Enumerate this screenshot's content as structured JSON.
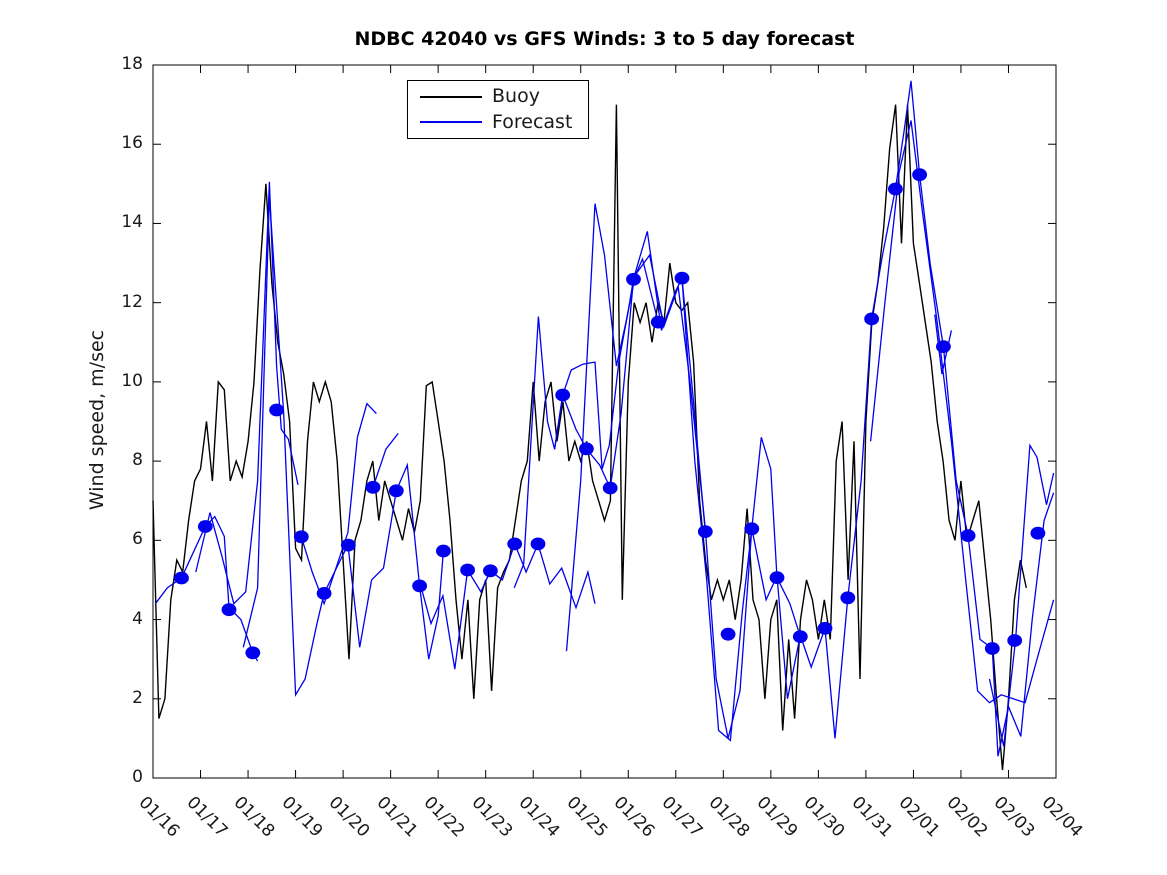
{
  "title": "NDBC 42040 vs GFS Winds: 3 to 5 day forecast",
  "legend": {
    "items": [
      {
        "label": "Buoy",
        "color": "#000000"
      },
      {
        "label": "Forecast",
        "color": "#0000ee"
      }
    ]
  },
  "colors": {
    "buoy": "#000000",
    "forecast": "#0000ee",
    "marker": "#0000ee",
    "axis": "#000000",
    "background": "#ffffff"
  },
  "chart_data": {
    "type": "line",
    "title": "NDBC 42040 vs GFS Winds: 3 to 5 day forecast",
    "xlabel": "",
    "ylabel": "Wind speed, m/sec",
    "ylim": [
      0,
      18
    ],
    "xlim_days": [
      0,
      19
    ],
    "grid": false,
    "legend_position": "top-left-inside",
    "yticks": [
      0,
      2,
      4,
      6,
      8,
      10,
      12,
      14,
      16,
      18
    ],
    "xtick_labels": [
      "01/16",
      "01/17",
      "01/18",
      "01/19",
      "01/20",
      "01/21",
      "01/22",
      "01/23",
      "01/24",
      "01/25",
      "01/26",
      "01/27",
      "01/28",
      "01/29",
      "01/30",
      "01/31",
      "02/01",
      "02/02",
      "02/03",
      "02/04"
    ],
    "x_unit": "days since 01/16 00:00",
    "buoy_series": {
      "name": "Buoy",
      "t_start": 0,
      "t_step": 0.125,
      "values": [
        7,
        1.5,
        2,
        4.5,
        5.5,
        5.2,
        6.5,
        7.5,
        7.8,
        9,
        7.5,
        10,
        9.8,
        7.5,
        8,
        7.6,
        8.5,
        10,
        12.8,
        15,
        12.5,
        11,
        10.2,
        9,
        5.8,
        5.5,
        8.5,
        10,
        9.5,
        10,
        9.5,
        8,
        5.5,
        3,
        6,
        6.5,
        7.5,
        8,
        6.5,
        7.5,
        7,
        6.5,
        6,
        6.8,
        6.2,
        7,
        9.9,
        10,
        9,
        8,
        6.5,
        4.5,
        3,
        4.5,
        2,
        4.5,
        5,
        2.2,
        4.8,
        5.2,
        5.5,
        6.5,
        7.5,
        8,
        10,
        8,
        9.5,
        10,
        8.5,
        9.5,
        8,
        8.5,
        8,
        8.5,
        7.5,
        7,
        6.5,
        7,
        17,
        4.5,
        10,
        12,
        11.5,
        12,
        11,
        12,
        11.5,
        13,
        12,
        11.8,
        12,
        10.5,
        7,
        5.5,
        4.5,
        5,
        4.5,
        5,
        4,
        5,
        6.8,
        4.5,
        4,
        2,
        4,
        4.5,
        1.2,
        3.5,
        1.5,
        4,
        5,
        4.5,
        3.5,
        4.5,
        3.5,
        8,
        9,
        5,
        8.5,
        2.5,
        9,
        11.5,
        12.5,
        13.9,
        15.9,
        17,
        13.5,
        17,
        13.5,
        12.5,
        11.5,
        10.5,
        9,
        8,
        6.5,
        6,
        7.5,
        6,
        6.5,
        7,
        5.5,
        4,
        2,
        0.2,
        2,
        4.5,
        5.5,
        4.8
      ]
    },
    "forecast_segments": [
      [
        [
          0.05,
          4.4
        ],
        [
          0.3,
          4.8
        ],
        [
          0.6,
          5.05
        ],
        [
          0.85,
          5.7
        ],
        [
          1.1,
          6.35
        ],
        [
          1.3,
          6.6
        ],
        [
          1.5,
          6.1
        ],
        [
          1.6,
          4.3
        ],
        [
          1.85,
          4.0
        ],
        [
          2.1,
          3.16
        ],
        [
          2.2,
          2.95
        ]
      ],
      [
        [
          0.9,
          5.2
        ],
        [
          1.2,
          6.7
        ],
        [
          1.45,
          5.6
        ],
        [
          1.7,
          4.4
        ],
        [
          1.95,
          4.7
        ],
        [
          2.2,
          7.5
        ],
        [
          2.45,
          15.05
        ],
        [
          2.6,
          10.4
        ],
        [
          2.7,
          8.8
        ],
        [
          2.85,
          8.55
        ],
        [
          3.05,
          7.4
        ]
      ],
      [
        [
          1.9,
          3.3
        ],
        [
          2.2,
          4.8
        ],
        [
          2.45,
          14.7
        ],
        [
          2.75,
          9.2
        ],
        [
          3.0,
          2.1
        ],
        [
          3.2,
          2.5
        ],
        [
          3.45,
          3.9
        ],
        [
          3.6,
          4.66
        ],
        [
          3.9,
          5.4
        ],
        [
          4.1,
          5.88
        ]
      ],
      [
        [
          3.12,
          6.09
        ],
        [
          3.35,
          5.2
        ],
        [
          3.6,
          4.4
        ],
        [
          3.85,
          5.3
        ],
        [
          4.1,
          6.2
        ],
        [
          4.3,
          8.6
        ],
        [
          4.5,
          9.45
        ],
        [
          4.7,
          9.2
        ]
      ],
      [
        [
          4.1,
          5.9
        ],
        [
          4.35,
          3.3
        ],
        [
          4.6,
          5.0
        ],
        [
          4.85,
          5.3
        ],
        [
          5.12,
          7.25
        ],
        [
          5.35,
          7.9
        ],
        [
          5.61,
          4.85
        ],
        [
          5.8,
          3.0
        ],
        [
          6.0,
          4.1
        ],
        [
          6.11,
          5.73
        ]
      ],
      [
        [
          4.63,
          7.34
        ],
        [
          4.9,
          8.3
        ],
        [
          5.16,
          8.7
        ]
      ],
      [
        [
          5.6,
          5.0
        ],
        [
          5.85,
          3.9
        ],
        [
          6.1,
          4.6
        ],
        [
          6.35,
          2.75
        ],
        [
          6.62,
          5.25
        ],
        [
          6.9,
          4.7
        ],
        [
          7.1,
          5.23
        ],
        [
          7.35,
          5.0
        ],
        [
          7.61,
          5.91
        ],
        [
          7.85,
          5.2
        ],
        [
          8.1,
          5.91
        ],
        [
          8.35,
          4.9
        ],
        [
          8.6,
          5.3
        ],
        [
          8.9,
          4.3
        ],
        [
          9.15,
          5.2
        ],
        [
          9.3,
          4.4
        ]
      ],
      [
        [
          7.6,
          4.8
        ],
        [
          7.8,
          5.4
        ],
        [
          8.11,
          11.65
        ],
        [
          8.3,
          9.0
        ],
        [
          8.45,
          8.3
        ],
        [
          8.62,
          9.67
        ],
        [
          8.9,
          8.8
        ],
        [
          9.12,
          8.31
        ],
        [
          9.4,
          7.9
        ],
        [
          9.62,
          7.32
        ],
        [
          9.85,
          9.2
        ],
        [
          10.11,
          12.59
        ],
        [
          10.3,
          13.1
        ],
        [
          10.63,
          11.51
        ]
      ],
      [
        [
          8.45,
          8.3
        ],
        [
          8.62,
          9.67
        ],
        [
          8.8,
          10.3
        ],
        [
          9.05,
          10.45
        ],
        [
          9.3,
          10.5
        ],
        [
          9.45,
          7.8
        ],
        [
          9.6,
          8.4
        ],
        [
          9.8,
          10.5
        ],
        [
          10.0,
          11.8
        ],
        [
          10.11,
          12.6
        ],
        [
          10.4,
          13.8
        ],
        [
          10.7,
          11.3
        ],
        [
          11.0,
          12.3
        ],
        [
          11.13,
          12.62
        ],
        [
          11.35,
          9.8
        ],
        [
          11.62,
          6.22
        ]
      ],
      [
        [
          8.7,
          3.2
        ],
        [
          9.0,
          7.5
        ],
        [
          9.3,
          14.5
        ],
        [
          9.5,
          13.2
        ],
        [
          9.75,
          10.4
        ],
        [
          9.95,
          11.5
        ],
        [
          10.15,
          12.7
        ],
        [
          10.45,
          13.2
        ],
        [
          10.75,
          11.4
        ],
        [
          11.05,
          12.4
        ],
        [
          11.3,
          10.0
        ],
        [
          11.62,
          6.3
        ],
        [
          11.85,
          2.5
        ],
        [
          12.1,
          1.0
        ],
        [
          12.35,
          2.2
        ],
        [
          12.6,
          6.29
        ]
      ],
      [
        [
          11.13,
          12.62
        ],
        [
          11.4,
          8.0
        ],
        [
          11.65,
          5.0
        ],
        [
          11.9,
          1.2
        ],
        [
          12.15,
          0.95
        ],
        [
          12.4,
          4.2
        ],
        [
          12.6,
          6.3
        ],
        [
          12.8,
          8.6
        ],
        [
          13.0,
          7.8
        ],
        [
          13.13,
          5.06
        ],
        [
          13.4,
          4.4
        ],
        [
          13.62,
          3.57
        ]
      ],
      [
        [
          12.6,
          6.3
        ],
        [
          12.9,
          4.5
        ],
        [
          13.13,
          5.1
        ],
        [
          13.35,
          2.0
        ],
        [
          13.62,
          3.6
        ],
        [
          13.85,
          2.8
        ],
        [
          14.14,
          3.78
        ],
        [
          14.35,
          1.0
        ],
        [
          14.62,
          4.55
        ]
      ],
      [
        [
          14.62,
          4.55
        ],
        [
          14.9,
          7.5
        ],
        [
          15.12,
          11.59
        ],
        [
          15.35,
          13.2
        ],
        [
          15.62,
          14.87
        ],
        [
          15.8,
          16.3
        ],
        [
          15.95,
          17.6
        ],
        [
          16.13,
          15.23
        ],
        [
          16.35,
          13.0
        ],
        [
          16.63,
          10.89
        ],
        [
          16.9,
          7.5
        ],
        [
          17.15,
          6.12
        ],
        [
          17.4,
          3.5
        ],
        [
          17.66,
          3.27
        ],
        [
          17.78,
          0.55
        ],
        [
          18.0,
          1.8
        ],
        [
          18.26,
          1.05
        ],
        [
          18.5,
          4.0
        ],
        [
          18.75,
          6.5
        ],
        [
          18.95,
          7.2
        ]
      ],
      [
        [
          15.1,
          8.5
        ],
        [
          15.4,
          12.0
        ],
        [
          15.7,
          15.3
        ],
        [
          15.95,
          16.6
        ],
        [
          16.2,
          14.2
        ],
        [
          16.5,
          11.5
        ],
        [
          16.8,
          8.5
        ],
        [
          17.1,
          5.0
        ],
        [
          17.35,
          2.2
        ],
        [
          17.6,
          1.9
        ],
        [
          17.85,
          2.1
        ],
        [
          18.1,
          2.0
        ],
        [
          18.35,
          1.9
        ],
        [
          18.6,
          3.0
        ],
        [
          18.95,
          4.5
        ]
      ],
      [
        [
          16.45,
          11.7
        ],
        [
          16.6,
          10.2
        ],
        [
          16.8,
          11.3
        ]
      ],
      [
        [
          17.6,
          2.5
        ],
        [
          17.9,
          0.8
        ],
        [
          18.15,
          3.5
        ],
        [
          18.45,
          8.4
        ],
        [
          18.6,
          8.1
        ],
        [
          18.8,
          6.9
        ],
        [
          18.95,
          7.7
        ]
      ]
    ],
    "forecast_markers": [
      [
        0.6,
        5.05
      ],
      [
        1.1,
        6.35
      ],
      [
        1.6,
        4.25
      ],
      [
        2.1,
        3.16
      ],
      [
        2.6,
        9.29
      ],
      [
        3.12,
        6.09
      ],
      [
        3.6,
        4.66
      ],
      [
        4.11,
        5.88
      ],
      [
        4.63,
        7.34
      ],
      [
        5.12,
        7.25
      ],
      [
        5.61,
        4.85
      ],
      [
        6.11,
        5.73
      ],
      [
        6.62,
        5.25
      ],
      [
        7.1,
        5.23
      ],
      [
        7.61,
        5.91
      ],
      [
        8.1,
        5.91
      ],
      [
        8.62,
        9.67
      ],
      [
        9.12,
        8.31
      ],
      [
        9.62,
        7.32
      ],
      [
        10.11,
        12.59
      ],
      [
        10.63,
        11.51
      ],
      [
        11.13,
        12.62
      ],
      [
        11.62,
        6.22
      ],
      [
        12.1,
        3.63
      ],
      [
        12.6,
        6.29
      ],
      [
        13.13,
        5.06
      ],
      [
        13.62,
        3.57
      ],
      [
        14.14,
        3.78
      ],
      [
        14.62,
        4.55
      ],
      [
        15.12,
        11.59
      ],
      [
        15.62,
        14.87
      ],
      [
        16.13,
        15.23
      ],
      [
        16.63,
        10.89
      ],
      [
        17.15,
        6.12
      ],
      [
        17.66,
        3.27
      ],
      [
        18.13,
        3.47
      ],
      [
        18.62,
        6.18
      ]
    ]
  }
}
